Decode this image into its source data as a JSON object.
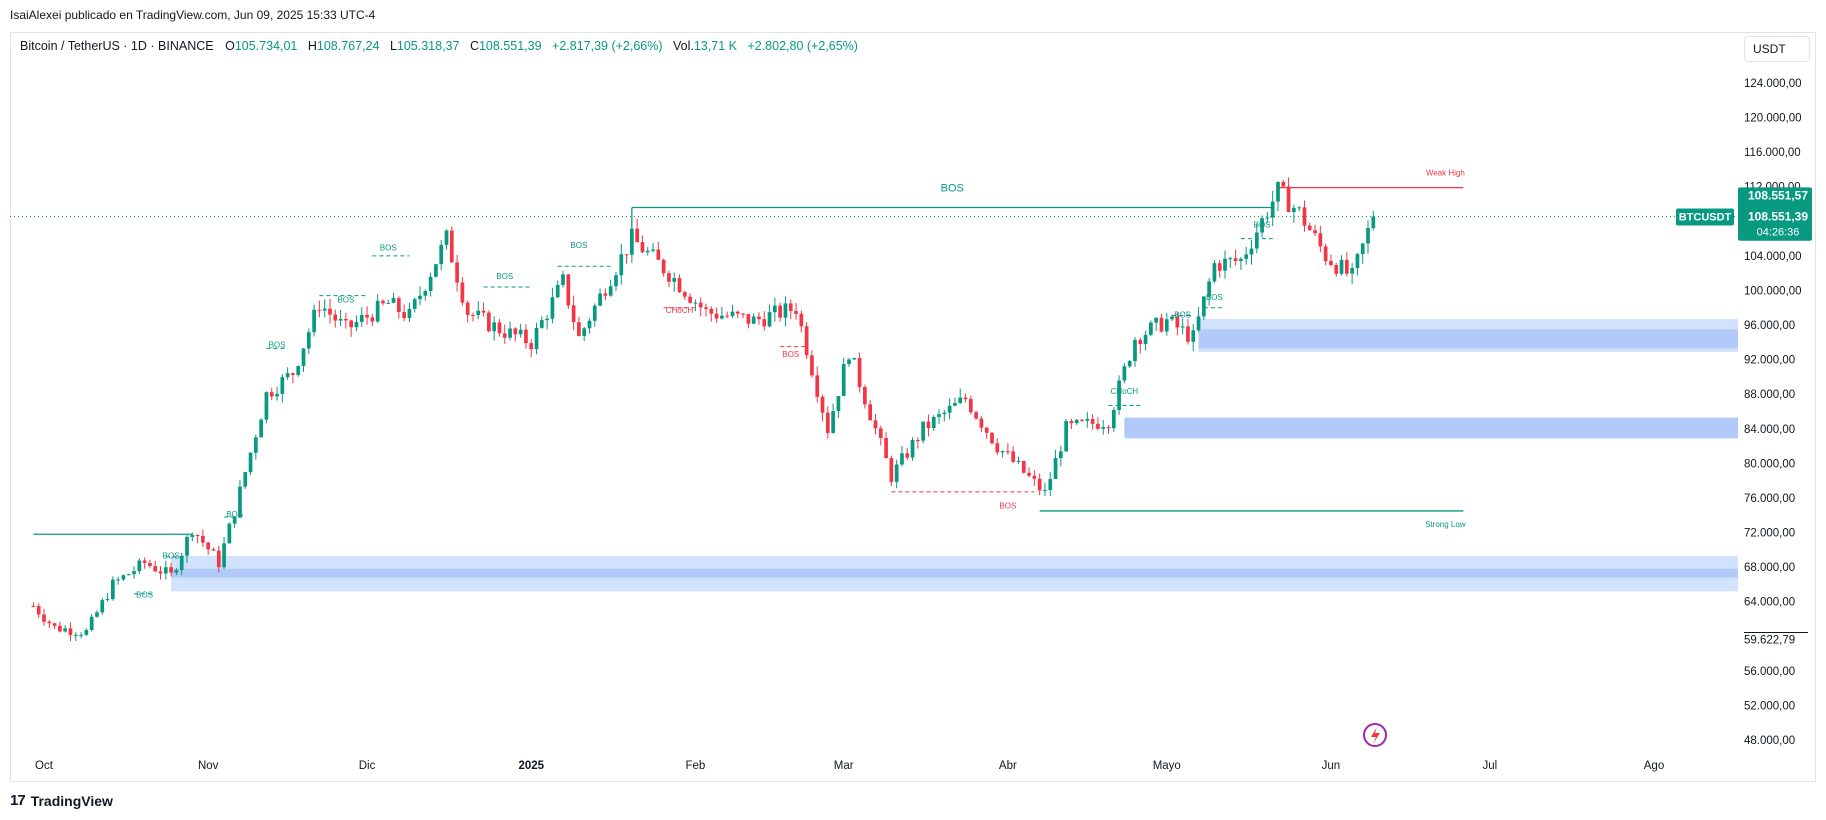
{
  "header": {
    "publisher_line": "IsaiAlexei publicado en TradingView.com, Jun 09, 2025 15:33 UTC-4"
  },
  "legend": {
    "symbol": "Bitcoin / TetherUS · 1D · BINANCE",
    "open_key": "O",
    "open": "105.734,01",
    "high_key": "H",
    "high": "108.767,24",
    "low_key": "L",
    "low": "105.318,37",
    "close_key": "C",
    "close": "108.551,39",
    "change": "+2.817,39 (+2,66%)",
    "vol_key": "Vol.",
    "vol": "13,71 K",
    "vol_change": "+2.802,80 (+2,65%)"
  },
  "currency": "USDT",
  "brand": "TradingView",
  "colors": {
    "up": "#089981",
    "down": "#f23645",
    "zone": "#bfd4fb",
    "zone_core": "#a9c4f7",
    "bos_up": "#089981",
    "bos_down": "#f23645",
    "price_tag": "#089981"
  },
  "chart_data": {
    "type": "candlestick",
    "yaxis": {
      "range": [
        45000,
        128000
      ],
      "ticks": [
        124000,
        120000,
        116000,
        112000,
        108000,
        104000,
        100000,
        96000,
        92000,
        88000,
        84000,
        80000,
        76000,
        72000,
        68000,
        64000,
        60000,
        56000,
        52000,
        48000
      ],
      "tick_labels": [
        "124.000,00",
        "120.000,00",
        "116.000,00",
        "112.000,00",
        "",
        "104.000,00",
        "100.000,00",
        "96.000,00",
        "92.000,00",
        "88.000,00",
        "84.000,00",
        "80.000,00",
        "76.000,00",
        "72.000,00",
        "68.000,00",
        "64.000,00",
        "",
        "56.000,00",
        "52.000,00",
        "48.000,00"
      ]
    },
    "xaxis": {
      "labels": [
        {
          "label": "Oct",
          "date": "2024-10-01"
        },
        {
          "label": "Nov",
          "date": "2024-11-01"
        },
        {
          "label": "Dic",
          "date": "2024-12-01"
        },
        {
          "label": "2025",
          "date": "2025-01-01"
        },
        {
          "label": "Feb",
          "date": "2025-02-01"
        },
        {
          "label": "Mar",
          "date": "2025-03-01"
        },
        {
          "label": "Abr",
          "date": "2025-04-01"
        },
        {
          "label": "Mayo",
          "date": "2025-05-01"
        },
        {
          "label": "Jun",
          "date": "2025-06-01"
        },
        {
          "label": "Jul",
          "date": "2025-07-01"
        },
        {
          "label": "Ago",
          "date": "2025-08-01"
        }
      ]
    },
    "price_path": [
      [
        "2024-09-29",
        63500
      ],
      [
        "2024-10-03",
        61000
      ],
      [
        "2024-10-09",
        60500
      ],
      [
        "2024-10-14",
        66000
      ],
      [
        "2024-10-20",
        68500
      ],
      [
        "2024-10-25",
        67000
      ],
      [
        "2024-10-29",
        72500
      ],
      [
        "2024-11-03",
        68500
      ],
      [
        "2024-11-06",
        74500
      ],
      [
        "2024-11-12",
        88000
      ],
      [
        "2024-11-17",
        90500
      ],
      [
        "2024-11-22",
        98500
      ],
      [
        "2024-11-27",
        95500
      ],
      [
        "2024-12-05",
        98500
      ],
      [
        "2024-12-09",
        97000
      ],
      [
        "2024-12-16",
        106000
      ],
      [
        "2024-12-20",
        97500
      ],
      [
        "2024-12-26",
        95500
      ],
      [
        "2025-01-01",
        94000
      ],
      [
        "2025-01-07",
        101000
      ],
      [
        "2025-01-10",
        94500
      ],
      [
        "2025-01-15",
        100500
      ],
      [
        "2025-01-20",
        106000
      ],
      [
        "2025-01-27",
        102000
      ],
      [
        "2025-02-03",
        97500
      ],
      [
        "2025-02-12",
        96500
      ],
      [
        "2025-02-20",
        98000
      ],
      [
        "2025-02-26",
        84000
      ],
      [
        "2025-03-02",
        93000
      ],
      [
        "2025-03-10",
        78500
      ],
      [
        "2025-03-16",
        84000
      ],
      [
        "2025-03-24",
        87500
      ],
      [
        "2025-03-30",
        82000
      ],
      [
        "2025-04-08",
        76500
      ],
      [
        "2025-04-12",
        84000
      ],
      [
        "2025-04-20",
        85000
      ],
      [
        "2025-04-25",
        94500
      ],
      [
        "2025-05-01",
        96500
      ],
      [
        "2025-05-06",
        94500
      ],
      [
        "2025-05-10",
        103000
      ],
      [
        "2025-05-15",
        103500
      ],
      [
        "2025-05-22",
        111500
      ],
      [
        "2025-05-26",
        109000
      ],
      [
        "2025-05-31",
        104000
      ],
      [
        "2025-06-05",
        101500
      ],
      [
        "2025-06-09",
        108551.39
      ]
    ],
    "horizontal_lines": [
      {
        "label": "BOS",
        "from": "2025-01-20",
        "to": "2025-05-21",
        "price": 109600,
        "color": "#089981"
      },
      {
        "label": "Weak High",
        "from": "2025-05-22",
        "to": "2025-06-26",
        "price": 111900,
        "color": "#f23645"
      },
      {
        "label": "Strong Low",
        "from": "2025-04-07",
        "to": "2025-06-26",
        "price": 74500,
        "color": "#089981"
      },
      {
        "label": "",
        "from": "2024-09-29",
        "to": "2024-10-29",
        "price": 71800,
        "color": "#089981"
      }
    ],
    "structure_labels": [
      {
        "label": "BOS",
        "date": "2024-10-20",
        "price": 64500,
        "line_from": "2024-10-18",
        "line_to": "2024-10-22",
        "line_price": 64900,
        "color": "#089981"
      },
      {
        "label": "BOS",
        "date": "2024-10-25",
        "price": 69000,
        "line_from": "2024-10-24",
        "line_to": "2024-10-28",
        "line_price": 69200,
        "color": "#089981"
      },
      {
        "label": "BOS",
        "date": "2024-11-06",
        "price": 73800,
        "line_from": "2024-11-04",
        "line_to": "2024-11-08",
        "line_price": 73800,
        "color": "#089981"
      },
      {
        "label": "BOS",
        "date": "2024-11-14",
        "price": 93400,
        "line_from": "2024-11-12",
        "line_to": "2024-11-16",
        "line_price": 93300,
        "color": "#089981"
      },
      {
        "label": "BOS",
        "date": "2024-11-27",
        "price": 98600,
        "line_from": "2024-11-22",
        "line_to": "2024-12-01",
        "line_price": 99400,
        "color": "#089981"
      },
      {
        "label": "BOS",
        "date": "2024-12-05",
        "price": 104600,
        "line_from": "2024-12-02",
        "line_to": "2024-12-09",
        "line_price": 104000,
        "color": "#089981"
      },
      {
        "label": "BOS",
        "date": "2024-12-27",
        "price": 101300,
        "line_from": "2024-12-23",
        "line_to": "2025-01-01",
        "line_price": 100400,
        "color": "#089981"
      },
      {
        "label": "BOS",
        "date": "2025-01-10",
        "price": 104900,
        "line_from": "2025-01-06",
        "line_to": "2025-01-16",
        "line_price": 102800,
        "color": "#089981"
      },
      {
        "label": "CHoCH",
        "date": "2025-01-29",
        "price": 97400,
        "line_from": "2025-01-26",
        "line_to": "2025-02-01",
        "line_price": 98000,
        "color": "#f23645"
      },
      {
        "label": "BOS",
        "date": "2025-02-19",
        "price": 92300,
        "line_from": "2025-02-17",
        "line_to": "2025-02-22",
        "line_price": 93500,
        "color": "#f23645"
      },
      {
        "label": "BOS",
        "date": "2025-04-01",
        "price": 74800,
        "line_from": "2025-03-10",
        "line_to": "2025-04-06",
        "line_price": 76700,
        "color": "#f23645"
      },
      {
        "label": "CHoCH",
        "date": "2025-04-23",
        "price": 88000,
        "line_from": "2025-04-20",
        "line_to": "2025-04-26",
        "line_price": 86700,
        "color": "#089981"
      },
      {
        "label": "BOS",
        "date": "2025-05-04",
        "price": 96900,
        "line_from": "2025-05-02",
        "line_to": "2025-05-06",
        "line_price": 97100,
        "color": "#089981"
      },
      {
        "label": "BOS",
        "date": "2025-05-10",
        "price": 98900,
        "line_from": "2025-05-08",
        "line_to": "2025-05-12",
        "line_price": 98000,
        "color": "#089981"
      },
      {
        "label": "BOS",
        "date": "2025-05-19",
        "price": 107300,
        "line_from": "2025-05-15",
        "line_to": "2025-05-21",
        "line_price": 106000,
        "color": "#089981"
      }
    ],
    "zones": [
      {
        "from": "2024-10-25",
        "price_top": 69300,
        "price_bottom": 65200,
        "core_top": 67800,
        "core_bottom": 66800
      },
      {
        "from": "2025-04-23",
        "price_top": 85300,
        "price_bottom": 82900,
        "core_top": 85300,
        "core_bottom": 82900
      },
      {
        "from": "2025-05-07",
        "price_top": 96700,
        "price_bottom": 92900,
        "core_top": 95500,
        "core_bottom": 93300
      }
    ],
    "last_price_line": 108551.39,
    "price_tags": [
      {
        "label": "108.551,57",
        "price": 111000
      },
      {
        "label": "108.551,39",
        "price": 108551
      },
      {
        "label": "04:26:36",
        "price": 106800
      }
    ],
    "symbol_tag": "BTCUSDT",
    "highlighted_price_label": "59.622,79",
    "highlighted_price": 59622.79
  }
}
